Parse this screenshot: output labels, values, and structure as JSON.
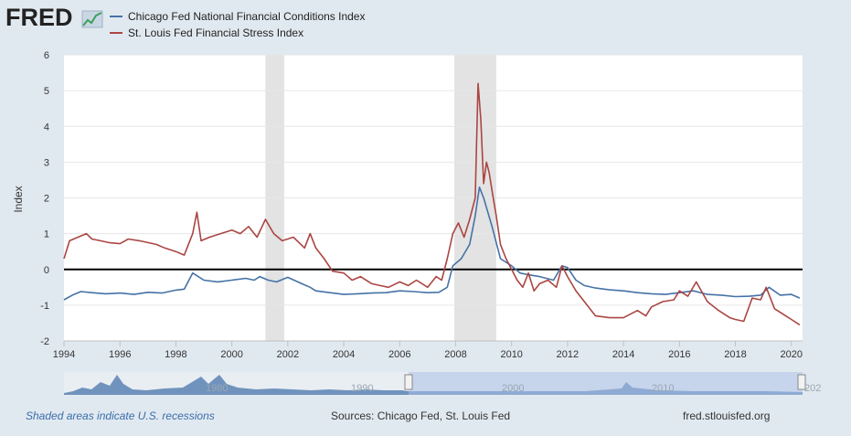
{
  "logo": {
    "text": "FRED"
  },
  "legend": [
    {
      "label": "Chicago Fed National Financial Conditions Index",
      "color": "#4572a7"
    },
    {
      "label": "St. Louis Fed Financial Stress Index",
      "color": "#aa4643"
    }
  ],
  "chart_data": {
    "type": "line",
    "ylabel": "Index",
    "ylim": [
      -2,
      6
    ],
    "yticks": [
      -2,
      -1,
      0,
      1,
      2,
      3,
      4,
      5,
      6
    ],
    "xlim": [
      1994,
      2020.4
    ],
    "xticks": [
      1994,
      1996,
      1998,
      2000,
      2002,
      2004,
      2006,
      2008,
      2010,
      2012,
      2014,
      2016,
      2018,
      2020
    ],
    "recessions": [
      [
        2001.2,
        2001.87
      ],
      [
        2007.95,
        2009.45
      ]
    ],
    "zero_line": 0,
    "series": [
      {
        "name": "Chicago Fed National Financial Conditions Index",
        "x": [
          1994.0,
          1994.3,
          1994.6,
          1995.0,
          1995.5,
          1996.0,
          1996.5,
          1997.0,
          1997.5,
          1998.0,
          1998.3,
          1998.6,
          1998.8,
          1999.0,
          1999.5,
          2000.0,
          2000.5,
          2000.8,
          2001.0,
          2001.3,
          2001.6,
          2002.0,
          2002.5,
          2002.8,
          2003.0,
          2003.5,
          2004.0,
          2004.5,
          2005.0,
          2005.5,
          2006.0,
          2006.5,
          2007.0,
          2007.4,
          2007.7,
          2007.9,
          2008.2,
          2008.5,
          2008.7,
          2008.85,
          2009.0,
          2009.3,
          2009.6,
          2010.0,
          2010.3,
          2010.6,
          2011.0,
          2011.5,
          2011.8,
          2012.0,
          2012.3,
          2012.6,
          2013.0,
          2013.5,
          2014.0,
          2014.5,
          2015.0,
          2015.5,
          2016.0,
          2016.5,
          2017.0,
          2017.5,
          2018.0,
          2018.5,
          2018.9,
          2019.2,
          2019.6,
          2020.0,
          2020.3
        ],
        "values": [
          -0.85,
          -0.72,
          -0.62,
          -0.65,
          -0.68,
          -0.66,
          -0.7,
          -0.64,
          -0.66,
          -0.58,
          -0.55,
          -0.1,
          -0.2,
          -0.3,
          -0.35,
          -0.3,
          -0.25,
          -0.3,
          -0.2,
          -0.3,
          -0.35,
          -0.22,
          -0.4,
          -0.5,
          -0.6,
          -0.65,
          -0.7,
          -0.68,
          -0.66,
          -0.65,
          -0.6,
          -0.62,
          -0.65,
          -0.64,
          -0.5,
          0.1,
          0.3,
          0.7,
          1.5,
          2.3,
          2.0,
          1.2,
          0.3,
          0.1,
          -0.1,
          -0.15,
          -0.2,
          -0.3,
          0.1,
          0.05,
          -0.3,
          -0.45,
          -0.52,
          -0.57,
          -0.6,
          -0.65,
          -0.68,
          -0.7,
          -0.65,
          -0.6,
          -0.7,
          -0.72,
          -0.76,
          -0.75,
          -0.72,
          -0.5,
          -0.72,
          -0.7,
          -0.8
        ]
      },
      {
        "name": "St. Louis Fed Financial Stress Index",
        "x": [
          1994.0,
          1994.2,
          1994.5,
          1994.8,
          1995.0,
          1995.3,
          1995.6,
          1996.0,
          1996.3,
          1996.7,
          1997.0,
          1997.3,
          1997.6,
          1998.0,
          1998.3,
          1998.6,
          1998.75,
          1998.9,
          1999.2,
          1999.6,
          2000.0,
          2000.3,
          2000.6,
          2000.9,
          2001.2,
          2001.5,
          2001.8,
          2002.2,
          2002.6,
          2002.8,
          2003.0,
          2003.3,
          2003.6,
          2004.0,
          2004.3,
          2004.6,
          2005.0,
          2005.3,
          2005.6,
          2006.0,
          2006.3,
          2006.6,
          2007.0,
          2007.3,
          2007.5,
          2007.7,
          2007.9,
          2008.1,
          2008.3,
          2008.5,
          2008.7,
          2008.8,
          2008.9,
          2009.0,
          2009.1,
          2009.2,
          2009.3,
          2009.45,
          2009.6,
          2009.8,
          2010.0,
          2010.2,
          2010.4,
          2010.6,
          2010.8,
          2011.0,
          2011.3,
          2011.6,
          2011.8,
          2012.0,
          2012.3,
          2012.6,
          2013.0,
          2013.5,
          2014.0,
          2014.5,
          2014.8,
          2015.0,
          2015.4,
          2015.8,
          2016.0,
          2016.3,
          2016.6,
          2017.0,
          2017.4,
          2017.8,
          2018.0,
          2018.3,
          2018.6,
          2018.9,
          2019.1,
          2019.4,
          2019.8,
          2020.0,
          2020.3
        ],
        "values": [
          0.3,
          0.8,
          0.9,
          1.0,
          0.85,
          0.8,
          0.75,
          0.72,
          0.85,
          0.8,
          0.75,
          0.7,
          0.6,
          0.5,
          0.4,
          1.0,
          1.6,
          0.8,
          0.9,
          1.0,
          1.1,
          1.0,
          1.2,
          0.9,
          1.4,
          1.0,
          0.8,
          0.9,
          0.6,
          1.0,
          0.6,
          0.3,
          -0.05,
          -0.1,
          -0.3,
          -0.2,
          -0.4,
          -0.45,
          -0.5,
          -0.35,
          -0.45,
          -0.3,
          -0.5,
          -0.2,
          -0.3,
          0.3,
          1.0,
          1.3,
          0.9,
          1.4,
          2.0,
          5.2,
          4.2,
          2.4,
          3.0,
          2.7,
          2.2,
          1.5,
          0.7,
          0.3,
          0.0,
          -0.3,
          -0.5,
          -0.1,
          -0.6,
          -0.4,
          -0.3,
          -0.5,
          0.1,
          -0.2,
          -0.6,
          -0.9,
          -1.3,
          -1.35,
          -1.35,
          -1.15,
          -1.3,
          -1.05,
          -0.9,
          -0.85,
          -0.6,
          -0.75,
          -0.35,
          -0.9,
          -1.15,
          -1.35,
          -1.4,
          -1.45,
          -0.8,
          -0.85,
          -0.5,
          -1.1,
          -1.3,
          -1.4,
          -1.55
        ]
      }
    ]
  },
  "navigator": {
    "labels": [
      "1980",
      "1990",
      "2000",
      "2010",
      "202"
    ]
  },
  "footer": {
    "note": "Shaded areas indicate U.S. recessions",
    "sources": "Sources: Chicago Fed, St. Louis Fed",
    "site": "fred.stlouisfed.org"
  }
}
